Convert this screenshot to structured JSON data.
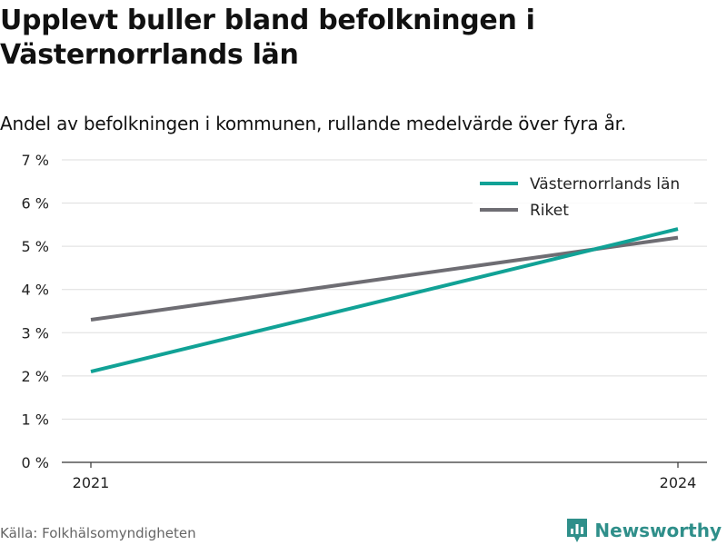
{
  "header": {
    "title": "Upplevt buller bland befolkningen i Västernorrlands län",
    "subtitle": "Andel av befolkningen i kommunen, rullande medelvärde över fyra år."
  },
  "footer": {
    "source": "Källa: Folkhälsomyndigheten",
    "brand": "Newsworthy",
    "brand_icon": "bar-chart-logo-icon"
  },
  "colors": {
    "vasternorrland": "#11a296",
    "riket": "#6e6d73",
    "grid": "#dddddd",
    "axis": "#333333",
    "brand": "#2f8f8a"
  },
  "chart_data": {
    "type": "line",
    "x": [
      "2021",
      "2024"
    ],
    "ylim": [
      0,
      7
    ],
    "yticks": [
      0,
      1,
      2,
      3,
      4,
      5,
      6,
      7
    ],
    "ytick_labels": [
      "0 %",
      "1 %",
      "2 %",
      "3 %",
      "4 %",
      "5 %",
      "6 %",
      "7 %"
    ],
    "grid": true,
    "legend_position": "top-right",
    "series": [
      {
        "name": "Västernorrlands län",
        "values": [
          2.1,
          5.4
        ],
        "color": "#11a296"
      },
      {
        "name": "Riket",
        "values": [
          3.3,
          5.2
        ],
        "color": "#6e6d73"
      }
    ]
  }
}
